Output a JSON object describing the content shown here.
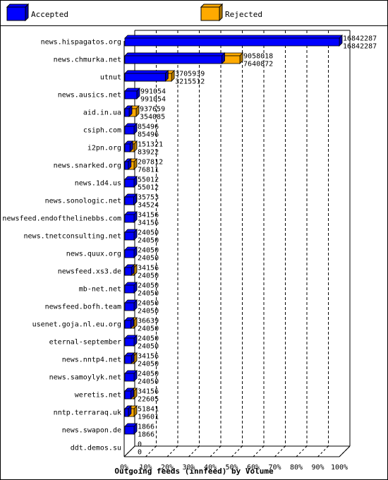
{
  "colors": {
    "accepted": "#0000ff",
    "accepted_side": "#0000b0",
    "rejected": "#ffaa00",
    "rejected_side": "#b07800",
    "axis": "#000000",
    "background": "#ffffff"
  },
  "chart_data": {
    "type": "bar",
    "orientation": "horizontal",
    "three_d": true,
    "title": "Outgoing feeds (innfeed) by Volume",
    "xlabel": "",
    "ylabel": "",
    "grid": true,
    "legend_placement": "top",
    "x_ticks": [
      "0%",
      "10%",
      "20%",
      "30%",
      "40%",
      "50%",
      "60%",
      "70%",
      "80%",
      "90%",
      "100%"
    ],
    "xlim": [
      0,
      16842287
    ],
    "categories": [
      "news.hispagatos.org",
      "news.chmurka.net",
      "utnut",
      "news.ausics.net",
      "aid.in.ua",
      "csiph.com",
      "i2pn.org",
      "news.snarked.org",
      "news.1d4.us",
      "news.sonologic.net",
      "newsfeed.endofthelinebbs.com",
      "news.tnetconsulting.net",
      "news.quux.org",
      "newsfeed.xs3.de",
      "mb-net.net",
      "newsfeed.bofh.team",
      "usenet.goja.nl.eu.org",
      "eternal-september",
      "news.nntp4.net",
      "news.samoylyk.net",
      "weretis.net",
      "nntp.terraraq.uk",
      "news.swapon.de",
      "ddt.demos.su"
    ],
    "series": [
      {
        "name": "Accepted",
        "values": [
          16842287,
          9058018,
          3705939,
          991054,
          937659,
          85496,
          151321,
          207812,
          55012,
          35753,
          34156,
          24050,
          24050,
          34156,
          24050,
          24050,
          36639,
          24050,
          34156,
          24050,
          34156,
          51841,
          1866,
          0
        ],
        "labels": [
          "16842287",
          "9058018",
          "3705939",
          "991054",
          "937659",
          "85496",
          "151321",
          "207812",
          "55012",
          "35753",
          "34156",
          "24050",
          "24050",
          "34156",
          "24050",
          "24050",
          "36639",
          "24050",
          "34156",
          "24050",
          "34156",
          "51841",
          "1866",
          "0"
        ]
      },
      {
        "name": "Rejected",
        "values": [
          16842287,
          7640872,
          3215512,
          991054,
          354085,
          85496,
          83922,
          76811,
          55012,
          34524,
          34156,
          24050,
          24050,
          24050,
          24050,
          24050,
          24050,
          24050,
          24050,
          24050,
          22605,
          19601,
          1866,
          0
        ],
        "labels": [
          "16842287",
          "7640872",
          "3215512",
          "991054",
          "354085",
          "85496",
          "83922",
          "76811",
          "55012",
          "34524",
          "34156",
          "24050",
          "24050",
          "24050",
          "24050",
          "24050",
          "24050",
          "24050",
          "24050",
          "24050",
          "22605",
          "19601",
          "1866",
          "0"
        ]
      }
    ]
  }
}
